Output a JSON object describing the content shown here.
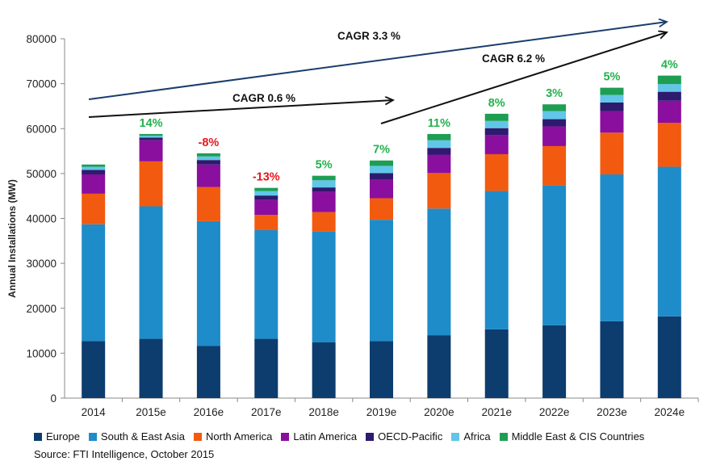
{
  "chart_data": {
    "type": "bar",
    "stacked": true,
    "ylabel": "Annual Installations (MW)",
    "ylim": [
      0,
      80000
    ],
    "yticks": [
      "0",
      "10000",
      "20000",
      "30000",
      "40000",
      "50000",
      "60000",
      "70000",
      "80000"
    ],
    "categories": [
      "2014",
      "2015e",
      "2016e",
      "2017e",
      "2018e",
      "2019e",
      "2020e",
      "2021e",
      "2022e",
      "2023e",
      "2024e"
    ],
    "series": [
      {
        "name": "Europe",
        "color": "#0d3c6e",
        "values": [
          12700,
          13200,
          11600,
          13200,
          12400,
          12700,
          14000,
          15300,
          16200,
          17100,
          18200
        ]
      },
      {
        "name": "South & East Asia",
        "color": "#1e8cc8",
        "values": [
          26000,
          29500,
          27800,
          24200,
          24700,
          27000,
          28200,
          30800,
          31200,
          32700,
          33300
        ]
      },
      {
        "name": "North America",
        "color": "#f25a0f",
        "values": [
          6800,
          10000,
          7600,
          3400,
          4300,
          4800,
          7900,
          8200,
          8700,
          9300,
          9800
        ]
      },
      {
        "name": "Latin America",
        "color": "#8a0f9e",
        "values": [
          4300,
          4700,
          5000,
          3300,
          4500,
          4100,
          4100,
          4300,
          4400,
          4800,
          4900
        ]
      },
      {
        "name": "OECD-Pacific",
        "color": "#2e1a6e",
        "values": [
          1000,
          600,
          1000,
          1000,
          1000,
          1500,
          1500,
          1500,
          1600,
          1900,
          2000
        ]
      },
      {
        "name": "Africa",
        "color": "#61c6e8",
        "values": [
          700,
          400,
          800,
          1000,
          1600,
          1600,
          1700,
          1600,
          1800,
          1700,
          1700
        ]
      },
      {
        "name": "Middle East & CIS Countries",
        "color": "#1e9e52",
        "values": [
          500,
          400,
          700,
          700,
          1000,
          1200,
          1400,
          1600,
          1500,
          1600,
          1900
        ]
      }
    ],
    "growth_labels": [
      {
        "category": "2015e",
        "text": "14%",
        "color": "#22b14c"
      },
      {
        "category": "2016e",
        "text": "-8%",
        "color": "#e8151a"
      },
      {
        "category": "2017e",
        "text": "-13%",
        "color": "#e8151a"
      },
      {
        "category": "2018e",
        "text": "5%",
        "color": "#22b14c"
      },
      {
        "category": "2019e",
        "text": "7%",
        "color": "#22b14c"
      },
      {
        "category": "2020e",
        "text": "11%",
        "color": "#22b14c"
      },
      {
        "category": "2021e",
        "text": "8%",
        "color": "#22b14c"
      },
      {
        "category": "2022e",
        "text": "3%",
        "color": "#22b14c"
      },
      {
        "category": "2023e",
        "text": "5%",
        "color": "#22b14c"
      },
      {
        "category": "2024e",
        "text": "4%",
        "color": "#22b14c"
      }
    ],
    "annotations": [
      {
        "text": "CAGR  3.3 %",
        "color": "#1a3d6e"
      },
      {
        "text": "CAGR 0.6 %",
        "color": "#111111"
      },
      {
        "text": "CAGR 6.2 %",
        "color": "#111111"
      }
    ],
    "legend_position": "bottom",
    "grid": false
  },
  "source": "Source: FTI Intelligence, October 2015"
}
